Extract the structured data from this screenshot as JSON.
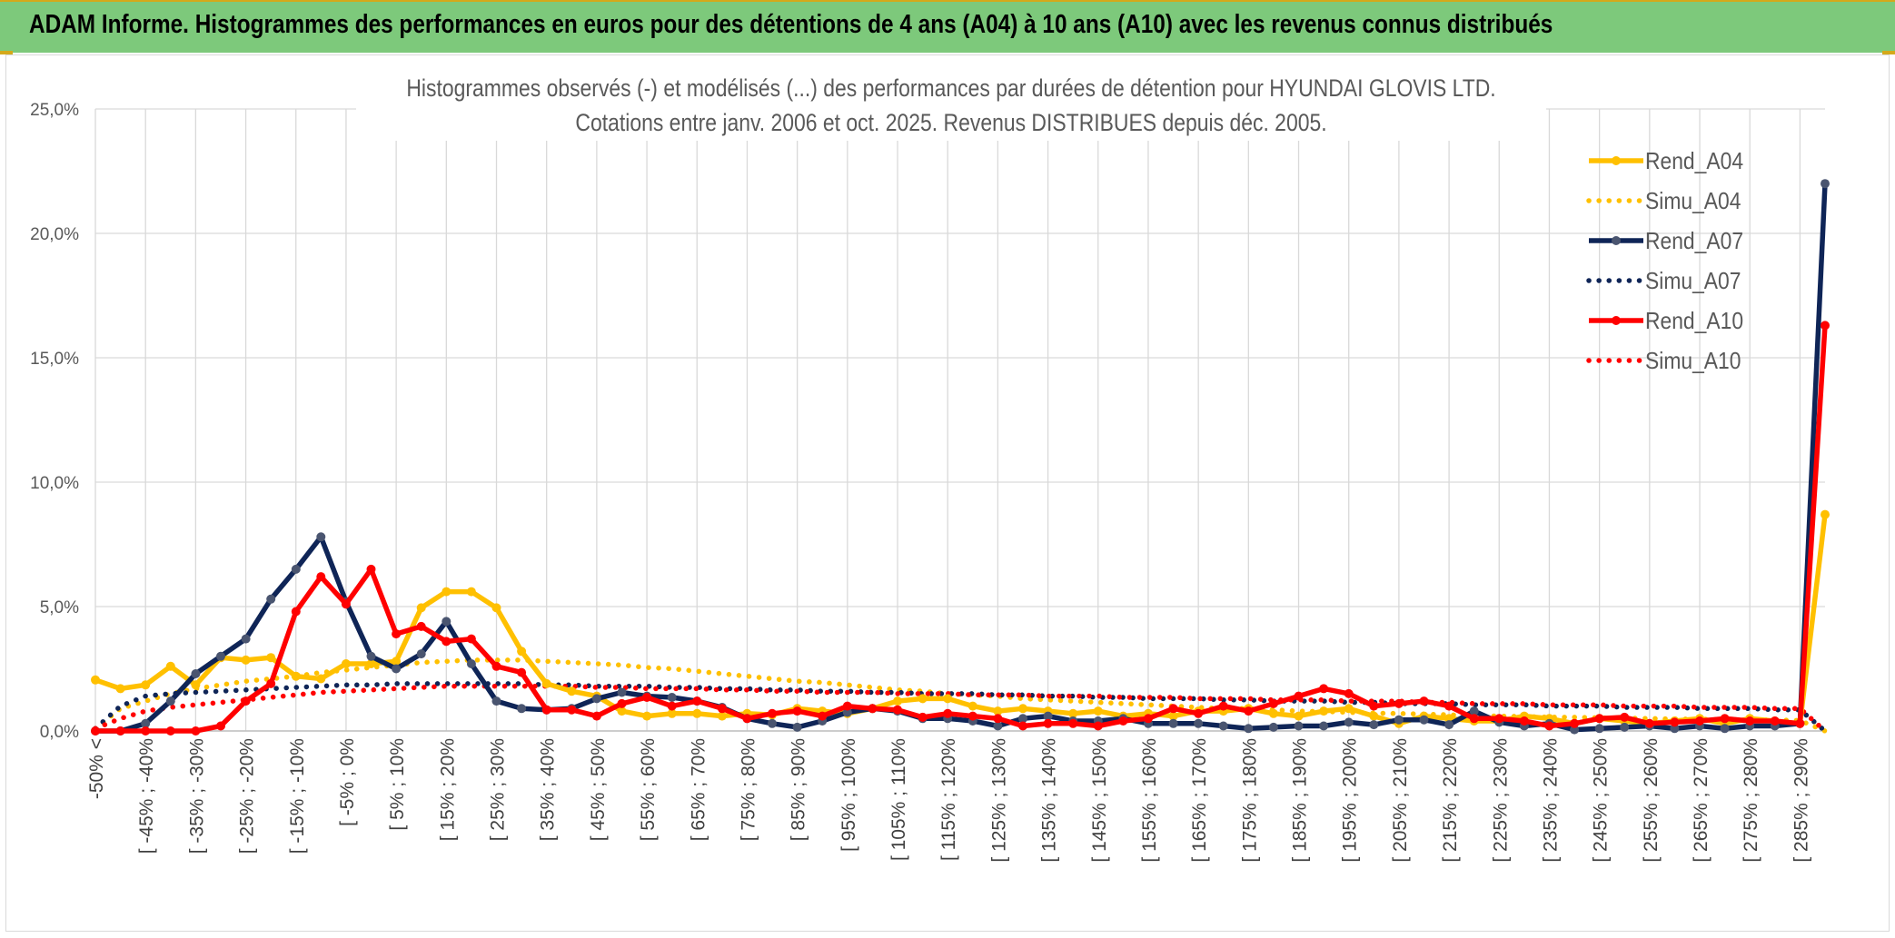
{
  "header": {
    "title": "ADAM Informe. Histogrammes des performances en euros pour des détentions de 4 ans (A04) à 10 ans (A10) avec les revenus connus distribués"
  },
  "chart_data": {
    "type": "line",
    "title": "Histogrammes observés (-) et modélisés (...) des performances par durées de détention pour HYUNDAI GLOVIS LTD.",
    "subtitle": "Cotations entre janv. 2006 et oct. 2025. Revenus DISTRIBUES depuis déc. 2005.",
    "y_ticks": [
      "0,0%",
      "5,0%",
      "10,0%",
      "15,0%",
      "20,0%",
      "25,0%"
    ],
    "ylim": [
      0,
      25
    ],
    "grid": true,
    "legend_position": "right",
    "x_labels": [
      "-50% <",
      "[ -45% ; -40%",
      "[ -35% ; -30%",
      "[ -25% ; -20%",
      "[ -15% ; -10%",
      "[ -5% ; 0%",
      "[ 5% ; 10%",
      "[ 15% ; 20%",
      "[ 25% ; 30%",
      "[ 35% ; 40%",
      "[ 45% ; 50%",
      "[ 55% ; 60%",
      "[ 65% ; 70%",
      "[ 75% ; 80%",
      "[ 85% ; 90%",
      "[ 95% ; 100%",
      "[ 105% ; 110%",
      "[ 115% ; 120%",
      "[ 125% ; 130%",
      "[ 135% ; 140%",
      "[ 145% ; 150%",
      "[ 155% ; 160%",
      "[ 165% ; 170%",
      "[ 175% ; 180%",
      "[ 185% ; 190%",
      "[ 195% ; 200%",
      "[ 205% ; 210%",
      "[ 215% ; 220%",
      "[ 225% ; 230%",
      "[ 235% ; 240%",
      "[ 245% ; 250%",
      "[ 255% ; 260%",
      "[ 265% ; 270%",
      "[ 275% ; 280%",
      "[ 285% ; 290%"
    ],
    "n_points": 70,
    "series": [
      {
        "name": "Rend_A04",
        "color": "#ffc000",
        "style": "solid",
        "markers": true,
        "values": [
          2.05,
          1.7,
          1.85,
          2.6,
          1.85,
          2.95,
          2.85,
          2.95,
          2.2,
          2.1,
          2.7,
          2.7,
          2.8,
          4.95,
          5.6,
          5.6,
          4.95,
          3.2,
          1.9,
          1.6,
          1.4,
          0.8,
          0.6,
          0.7,
          0.7,
          0.6,
          0.7,
          0.65,
          0.9,
          0.8,
          0.7,
          0.9,
          1.2,
          1.3,
          1.3,
          1.0,
          0.8,
          0.9,
          0.8,
          0.7,
          0.8,
          0.6,
          0.7,
          0.6,
          0.8,
          0.8,
          0.9,
          0.7,
          0.6,
          0.8,
          0.9,
          0.6,
          0.3,
          0.6,
          0.5,
          0.4,
          0.4,
          0.6,
          0.5,
          0.3,
          0.5,
          0.4,
          0.3,
          0.4,
          0.5,
          0.3,
          0.5,
          0.4,
          0.3,
          8.7
        ]
      },
      {
        "name": "Simu_A04",
        "color": "#ffc000",
        "style": "dotted",
        "markers": false,
        "values": [
          0.1,
          0.9,
          1.2,
          1.5,
          1.7,
          1.85,
          2.0,
          2.1,
          2.2,
          2.35,
          2.45,
          2.55,
          2.65,
          2.75,
          2.8,
          2.85,
          2.85,
          2.85,
          2.8,
          2.75,
          2.7,
          2.65,
          2.55,
          2.5,
          2.4,
          2.3,
          2.2,
          2.1,
          2.0,
          1.95,
          1.85,
          1.75,
          1.65,
          1.6,
          1.5,
          1.45,
          1.4,
          1.3,
          1.25,
          1.2,
          1.15,
          1.1,
          1.05,
          1.0,
          0.95,
          0.9,
          0.9,
          0.85,
          0.8,
          0.78,
          0.75,
          0.72,
          0.7,
          0.68,
          0.65,
          0.62,
          0.6,
          0.58,
          0.56,
          0.55,
          0.53,
          0.52,
          0.5,
          0.48,
          0.47,
          0.46,
          0.45,
          0.44,
          0.42,
          0.0
        ]
      },
      {
        "name": "Rend_A07",
        "color": "#0f2557",
        "style": "solid",
        "markers": true,
        "values": [
          0.0,
          0.0,
          0.3,
          1.2,
          2.3,
          3.0,
          3.7,
          5.3,
          6.5,
          7.8,
          5.2,
          3.0,
          2.5,
          3.1,
          4.4,
          2.7,
          1.2,
          0.9,
          0.85,
          0.9,
          1.3,
          1.55,
          1.4,
          1.35,
          1.2,
          0.95,
          0.5,
          0.3,
          0.15,
          0.4,
          0.75,
          0.9,
          0.8,
          0.5,
          0.5,
          0.4,
          0.2,
          0.5,
          0.6,
          0.4,
          0.4,
          0.5,
          0.3,
          0.3,
          0.3,
          0.2,
          0.1,
          0.15,
          0.2,
          0.2,
          0.35,
          0.25,
          0.45,
          0.45,
          0.25,
          0.8,
          0.35,
          0.2,
          0.3,
          0.05,
          0.1,
          0.15,
          0.2,
          0.1,
          0.2,
          0.1,
          0.2,
          0.2,
          0.3,
          22.0
        ]
      },
      {
        "name": "Simu_A07",
        "color": "#0f2557",
        "style": "dotted",
        "markers": false,
        "values": [
          0.1,
          1.0,
          1.4,
          1.5,
          1.55,
          1.6,
          1.65,
          1.7,
          1.75,
          1.8,
          1.85,
          1.85,
          1.9,
          1.9,
          1.9,
          1.9,
          1.9,
          1.9,
          1.85,
          1.85,
          1.8,
          1.8,
          1.8,
          1.75,
          1.75,
          1.7,
          1.7,
          1.65,
          1.65,
          1.6,
          1.6,
          1.55,
          1.55,
          1.5,
          1.5,
          1.5,
          1.45,
          1.45,
          1.4,
          1.4,
          1.35,
          1.35,
          1.3,
          1.3,
          1.3,
          1.25,
          1.25,
          1.2,
          1.2,
          1.2,
          1.15,
          1.15,
          1.1,
          1.1,
          1.1,
          1.05,
          1.05,
          1.05,
          1.0,
          1.0,
          1.0,
          0.95,
          0.95,
          0.95,
          0.9,
          0.9,
          0.9,
          0.85,
          0.85,
          0.0
        ]
      },
      {
        "name": "Rend_A10",
        "color": "#ff0000",
        "style": "solid",
        "markers": true,
        "values": [
          0.0,
          0.0,
          0.0,
          0.0,
          0.0,
          0.2,
          1.2,
          1.9,
          4.8,
          6.2,
          5.1,
          6.5,
          3.9,
          4.2,
          3.6,
          3.7,
          2.6,
          2.35,
          0.85,
          0.85,
          0.6,
          1.1,
          1.35,
          1.0,
          1.2,
          0.9,
          0.5,
          0.7,
          0.8,
          0.6,
          1.0,
          0.9,
          0.85,
          0.55,
          0.7,
          0.6,
          0.5,
          0.2,
          0.3,
          0.3,
          0.2,
          0.4,
          0.5,
          0.9,
          0.7,
          1.0,
          0.8,
          1.1,
          1.4,
          1.7,
          1.5,
          1.0,
          1.1,
          1.2,
          1.0,
          0.5,
          0.5,
          0.4,
          0.2,
          0.3,
          0.5,
          0.55,
          0.3,
          0.35,
          0.4,
          0.5,
          0.4,
          0.4,
          0.3,
          16.3
        ]
      },
      {
        "name": "Simu_A10",
        "color": "#ff0000",
        "style": "dotted",
        "markers": false,
        "values": [
          0.1,
          0.5,
          0.8,
          0.95,
          1.05,
          1.15,
          1.25,
          1.35,
          1.45,
          1.55,
          1.6,
          1.65,
          1.7,
          1.75,
          1.8,
          1.8,
          1.8,
          1.8,
          1.8,
          1.8,
          1.75,
          1.75,
          1.7,
          1.7,
          1.7,
          1.65,
          1.65,
          1.6,
          1.6,
          1.55,
          1.55,
          1.55,
          1.5,
          1.5,
          1.5,
          1.45,
          1.45,
          1.45,
          1.4,
          1.4,
          1.4,
          1.35,
          1.35,
          1.35,
          1.3,
          1.3,
          1.3,
          1.25,
          1.25,
          1.25,
          1.2,
          1.2,
          1.2,
          1.15,
          1.15,
          1.1,
          1.1,
          1.1,
          1.05,
          1.05,
          1.05,
          1.0,
          1.0,
          1.0,
          0.95,
          0.95,
          0.95,
          0.9,
          0.9,
          0.0
        ]
      }
    ]
  }
}
